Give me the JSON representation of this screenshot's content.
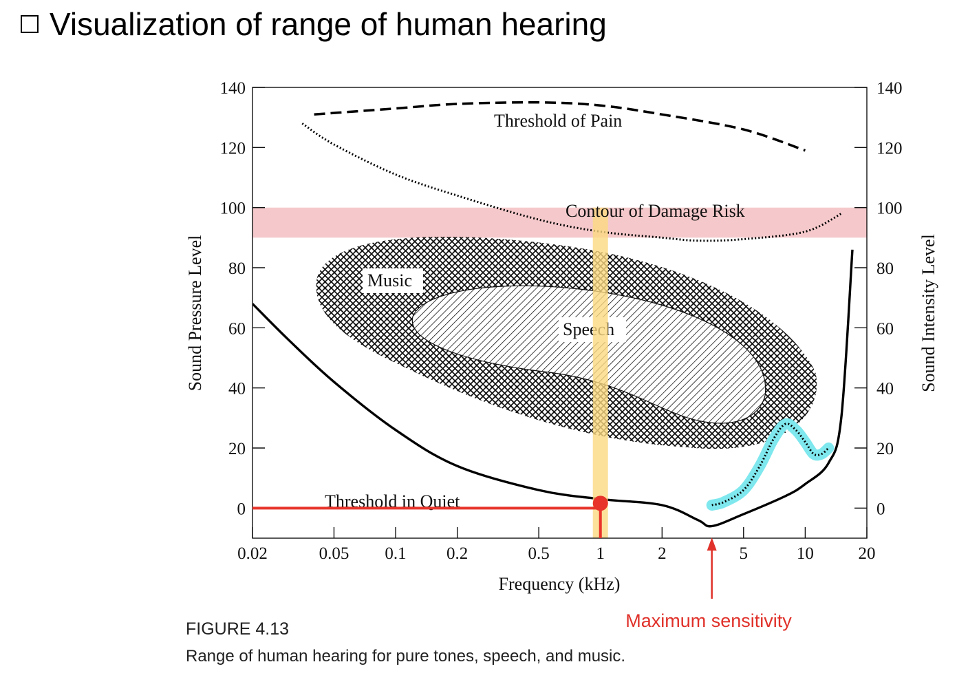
{
  "slide": {
    "title": "Visualization of range of human hearing"
  },
  "figure": {
    "label": "FIGURE 4.13",
    "caption": "Range of human hearing for pure tones, speech, and music."
  },
  "chart_data": {
    "type": "line",
    "xlabel": "Frequency (kHz)",
    "ylabel": "Sound Pressure Level",
    "ylabel_right": "Sound Intensity Level",
    "x_scale": "log",
    "xlim": [
      0.02,
      20
    ],
    "ylim": [
      -10,
      140
    ],
    "x_ticks": [
      0.02,
      0.05,
      0.1,
      0.2,
      0.5,
      1,
      2,
      5,
      10,
      20
    ],
    "x_tick_labels": [
      "0.02",
      "0.05",
      "0.1",
      "0.2",
      "0.5",
      "1",
      "2",
      "5",
      "10",
      "20"
    ],
    "y_ticks": [
      0,
      20,
      40,
      60,
      80,
      100,
      120,
      140
    ],
    "y_tick_labels": [
      "0",
      "20",
      "40",
      "60",
      "80",
      "100",
      "120",
      "140"
    ],
    "grid": false,
    "series": [
      {
        "name": "Threshold of Pain",
        "style": "dashed",
        "color": "#000000",
        "x": [
          0.04,
          0.1,
          0.2,
          0.5,
          1,
          2,
          5,
          10
        ],
        "y": [
          131,
          133,
          134.5,
          135,
          134,
          131,
          126,
          119
        ]
      },
      {
        "name": "Contour of Damage Risk",
        "style": "dotted",
        "color": "#000000",
        "x": [
          0.035,
          0.05,
          0.1,
          0.2,
          0.5,
          1,
          2,
          3,
          5,
          10,
          15
        ],
        "y": [
          128,
          121,
          111,
          104,
          96,
          92,
          90,
          89,
          89.5,
          92,
          98
        ]
      },
      {
        "name": "Threshold in Quiet",
        "style": "solid",
        "color": "#000000",
        "x": [
          0.02,
          0.03,
          0.05,
          0.1,
          0.2,
          0.5,
          1,
          2,
          3,
          3.5,
          5,
          8,
          10,
          13,
          15,
          17
        ],
        "y": [
          68,
          56,
          42,
          26,
          14,
          6,
          3,
          1,
          -4,
          -6,
          -2,
          4,
          8,
          15,
          30,
          86
        ]
      },
      {
        "name": "",
        "style": "dotted-highlight",
        "color": "#000000",
        "highlight": "#7fe8ee",
        "x": [
          3.5,
          4,
          5,
          6,
          7,
          8,
          9,
          10,
          11,
          12,
          13
        ],
        "y": [
          1,
          2,
          6,
          14,
          23,
          28,
          26,
          22,
          18,
          18,
          20
        ]
      }
    ],
    "regions": [
      {
        "name": "Music",
        "pattern": "crosshatch"
      },
      {
        "name": "Speech",
        "pattern": "diagonal"
      }
    ],
    "annotations": [
      {
        "type": "band-horizontal",
        "y_range": [
          90,
          100
        ],
        "color": "#f2b7b9"
      },
      {
        "type": "band-vertical",
        "x": 1,
        "color": "#fbd982"
      },
      {
        "type": "point",
        "x": 1,
        "y": 0,
        "color": "#e8332a"
      },
      {
        "type": "arrow",
        "x": 3.5,
        "text": "Maximum sensitivity",
        "color": "#e0312a"
      }
    ]
  }
}
